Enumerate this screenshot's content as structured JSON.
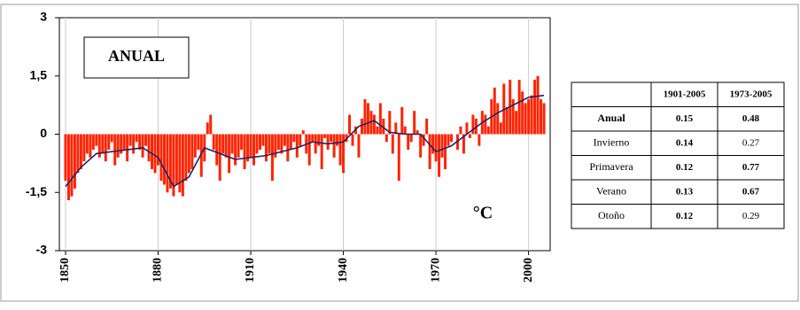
{
  "chart_data": {
    "type": "bar",
    "label_box": "ANUAL",
    "annotation": "°C",
    "x": [
      1850,
      1851,
      1852,
      1853,
      1854,
      1855,
      1856,
      1857,
      1858,
      1859,
      1860,
      1861,
      1862,
      1863,
      1864,
      1865,
      1866,
      1867,
      1868,
      1869,
      1870,
      1871,
      1872,
      1873,
      1874,
      1875,
      1876,
      1877,
      1878,
      1879,
      1880,
      1881,
      1882,
      1883,
      1884,
      1885,
      1886,
      1887,
      1888,
      1889,
      1890,
      1891,
      1892,
      1893,
      1894,
      1895,
      1896,
      1897,
      1898,
      1899,
      1900,
      1901,
      1902,
      1903,
      1904,
      1905,
      1906,
      1907,
      1908,
      1909,
      1910,
      1911,
      1912,
      1913,
      1914,
      1915,
      1916,
      1917,
      1918,
      1919,
      1920,
      1921,
      1922,
      1923,
      1924,
      1925,
      1926,
      1927,
      1928,
      1929,
      1930,
      1931,
      1932,
      1933,
      1934,
      1935,
      1936,
      1937,
      1938,
      1939,
      1940,
      1941,
      1942,
      1943,
      1944,
      1945,
      1946,
      1947,
      1948,
      1949,
      1950,
      1951,
      1952,
      1953,
      1954,
      1955,
      1956,
      1957,
      1958,
      1959,
      1960,
      1961,
      1962,
      1963,
      1964,
      1965,
      1966,
      1967,
      1968,
      1969,
      1970,
      1971,
      1972,
      1973,
      1974,
      1975,
      1976,
      1977,
      1978,
      1979,
      1980,
      1981,
      1982,
      1983,
      1984,
      1985,
      1986,
      1987,
      1988,
      1989,
      1990,
      1991,
      1992,
      1993,
      1994,
      1995,
      1996,
      1997,
      1998,
      1999,
      2000,
      2001,
      2002,
      2003,
      2004,
      2005
    ],
    "values": [
      -1.2,
      -1.7,
      -1.6,
      -1.4,
      -1.0,
      -0.9,
      -0.7,
      -0.5,
      -0.6,
      -0.4,
      -0.3,
      -0.6,
      -0.5,
      -0.7,
      -0.4,
      -0.2,
      -0.8,
      -0.6,
      -0.5,
      -0.4,
      -0.7,
      -0.3,
      -0.5,
      -0.2,
      -0.4,
      -0.6,
      -0.3,
      -0.7,
      -0.9,
      -1.0,
      -0.8,
      -1.2,
      -1.3,
      -1.5,
      -1.4,
      -1.6,
      -1.3,
      -1.5,
      -1.6,
      -1.2,
      -1.0,
      -0.9,
      -0.6,
      -0.4,
      -1.1,
      -0.7,
      0.3,
      0.5,
      -0.4,
      -0.8,
      -1.2,
      -0.5,
      -0.6,
      -1.0,
      -0.5,
      -0.8,
      -0.6,
      -0.4,
      -0.9,
      -0.7,
      -0.6,
      -0.8,
      -0.5,
      -0.4,
      -0.3,
      -0.7,
      -0.5,
      -1.2,
      -0.6,
      -0.4,
      -0.5,
      -0.3,
      -0.7,
      -0.4,
      -0.2,
      -0.6,
      -0.3,
      0.1,
      -0.5,
      -0.8,
      -0.2,
      -0.5,
      -0.3,
      -0.9,
      -0.1,
      -0.4,
      -0.2,
      -0.6,
      -0.3,
      -0.8,
      -1.0,
      -0.2,
      0.5,
      -0.3,
      0.2,
      -0.6,
      0.4,
      0.9,
      0.8,
      0.6,
      0.5,
      0.2,
      0.8,
      0.4,
      -0.2,
      0.6,
      -0.5,
      0.3,
      -1.2,
      0.7,
      0.2,
      -0.4,
      -0.2,
      0.6,
      0.1,
      -0.6,
      -0.3,
      0.4,
      -0.9,
      -0.5,
      -0.7,
      -1.1,
      -0.6,
      -0.9,
      -0.3,
      -0.2,
      0.0,
      -0.4,
      0.2,
      -0.5,
      0.3,
      -0.1,
      0.5,
      0.4,
      -0.3,
      0.6,
      0.5,
      0.2,
      0.9,
      1.2,
      0.8,
      0.3,
      1.3,
      0.7,
      1.4,
      0.9,
      0.6,
      1.4,
      1.1,
      0.8,
      0.9,
      1.0,
      1.4,
      1.5,
      0.9,
      0.8
    ],
    "color": "#ff2200",
    "line": {
      "x": [
        1850,
        1855,
        1860,
        1865,
        1870,
        1875,
        1880,
        1885,
        1890,
        1895,
        1900,
        1905,
        1910,
        1915,
        1920,
        1925,
        1930,
        1935,
        1940,
        1945,
        1950,
        1955,
        1960,
        1965,
        1970,
        1975,
        1980,
        1985,
        1990,
        1995,
        2000,
        2005
      ],
      "values": [
        -1.35,
        -0.85,
        -0.5,
        -0.45,
        -0.4,
        -0.35,
        -0.6,
        -1.35,
        -1.1,
        -0.35,
        -0.5,
        -0.65,
        -0.6,
        -0.55,
        -0.45,
        -0.35,
        -0.2,
        -0.25,
        -0.2,
        0.2,
        0.35,
        0.05,
        0.0,
        0.0,
        -0.45,
        -0.3,
        0.0,
        0.3,
        0.55,
        0.75,
        0.95,
        1.0
      ],
      "color": "#1c2466"
    },
    "xlim": [
      1848,
      2007
    ],
    "xticks": [
      1850,
      1880,
      1910,
      1940,
      1970,
      2000
    ],
    "ylim": [
      -3,
      3
    ],
    "yticks": [
      -3,
      {
        "value": -1.5,
        "label": "-1,5"
      },
      0,
      {
        "value": 1.5,
        "label": "1,5"
      },
      3
    ],
    "grid": true
  },
  "table": {
    "header": [
      "1901-2005",
      "1973-2005"
    ],
    "rows": [
      [
        "Anual",
        "0.15",
        "0.48"
      ],
      [
        "Invierno",
        "0.14",
        "0.27"
      ],
      [
        "Primavera",
        "0.12",
        "0.77"
      ],
      [
        "Verano",
        "0.13",
        "0.67"
      ],
      [
        "Otoño",
        "0.12",
        "0.29"
      ]
    ]
  }
}
